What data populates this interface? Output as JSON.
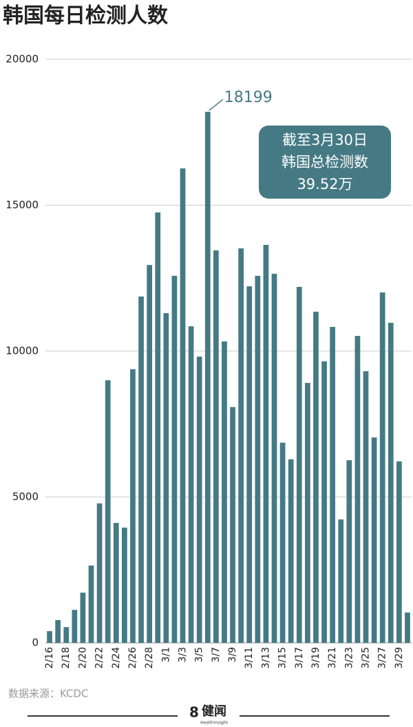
{
  "chart_data": {
    "type": "bar",
    "title": "韩国每日检测人数",
    "categories": [
      "2/16",
      null,
      "2/18",
      null,
      "2/20",
      null,
      "2/22",
      null,
      "2/24",
      null,
      "2/26",
      null,
      "2/28",
      null,
      "3/1",
      null,
      "3/3",
      null,
      "3/5",
      null,
      "3/7",
      null,
      "3/9",
      null,
      "3/11",
      null,
      "3/13",
      null,
      "3/15",
      null,
      "3/17",
      null,
      "3/19",
      null,
      "3/21",
      null,
      "3/23",
      null,
      "3/25",
      null,
      "3/27",
      null,
      "3/29",
      null
    ],
    "values": [
      400,
      780,
      540,
      1130,
      1720,
      2650,
      4780,
      9000,
      4110,
      3950,
      9380,
      11870,
      12950,
      14750,
      11300,
      12580,
      16260,
      10850,
      9810,
      18199,
      13450,
      10330,
      8080,
      13520,
      12220,
      12580,
      13640,
      12650,
      6860,
      6290,
      12200,
      8910,
      11350,
      9650,
      10830,
      4230,
      6260,
      10520,
      9310,
      7040,
      12010,
      10970,
      6220,
      1040
    ],
    "color": "#457a84",
    "ylim": [
      0,
      20000
    ],
    "yticks": [
      0,
      5000,
      10000,
      15000,
      20000
    ],
    "grid": true,
    "annotation": [
      "截至3月30日",
      "韩国总检测数",
      "39.52万"
    ],
    "source": "数据来源：KCDC",
    "logo": {
      "mark": "8",
      "name": "健闻",
      "sub": "HealthInsight"
    }
  }
}
